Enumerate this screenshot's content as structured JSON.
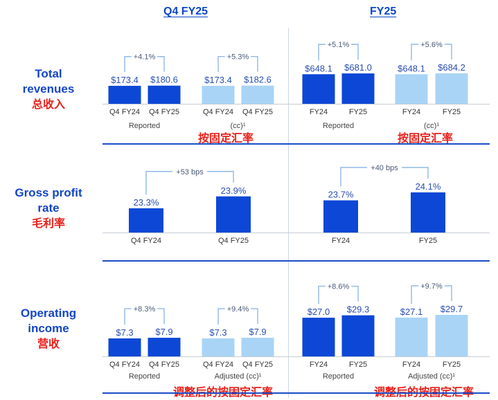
{
  "colors": {
    "dark": "#0d47d6",
    "light": "#a9d4f5",
    "text_blue": "#1346c4",
    "annot": "#8fb8e8",
    "red": "#e8201a"
  },
  "headers": {
    "q4": "Q4 FY25",
    "fy": "FY25"
  },
  "rows": [
    {
      "label_en": [
        "Total",
        "revenues"
      ],
      "label_zh": "总收入"
    },
    {
      "label_en": [
        "Gross profit",
        "rate"
      ],
      "label_zh": "毛利率"
    },
    {
      "label_en": [
        "Operating",
        "income"
      ],
      "label_zh": "营收"
    }
  ],
  "notes": {
    "rev_left": "按固定汇率",
    "rev_right": "按固定汇率",
    "op_left": "调整后的按固定汇率",
    "op_right": "调整后的按固定汇率"
  },
  "chart_data": [
    {
      "type": "bar",
      "id": "rev-q4-rep",
      "categories": [
        "Q4 FY24",
        "Q4 FY25"
      ],
      "values": [
        173.4,
        180.6
      ],
      "labels": [
        "$173.4",
        "$180.6"
      ],
      "change": "+4.1%",
      "group_label": "Reported",
      "tone": "dark"
    },
    {
      "type": "bar",
      "id": "rev-q4-cc",
      "categories": [
        "Q4 FY24",
        "Q4 FY25"
      ],
      "values": [
        173.4,
        182.6
      ],
      "labels": [
        "$173.4",
        "$182.6"
      ],
      "change": "+5.3%",
      "group_label": "(cc)¹",
      "tone": "light"
    },
    {
      "type": "bar",
      "id": "rev-fy-rep",
      "categories": [
        "FY24",
        "FY25"
      ],
      "values": [
        648.1,
        681.0
      ],
      "labels": [
        "$648.1",
        "$681.0"
      ],
      "change": "+5.1%",
      "group_label": "Reported",
      "tone": "dark"
    },
    {
      "type": "bar",
      "id": "rev-fy-cc",
      "categories": [
        "FY24",
        "FY25"
      ],
      "values": [
        648.1,
        684.2
      ],
      "labels": [
        "$648.1",
        "$684.2"
      ],
      "change": "+5.6%",
      "group_label": "(cc)¹",
      "tone": "light"
    },
    {
      "type": "bar",
      "id": "gp-q4",
      "categories": [
        "Q4 FY24",
        "Q4 FY25"
      ],
      "values": [
        23.3,
        23.9
      ],
      "labels": [
        "23.3%",
        "23.9%"
      ],
      "change": "+53 bps",
      "group_label": "",
      "tone": "dark"
    },
    {
      "type": "bar",
      "id": "gp-fy",
      "categories": [
        "FY24",
        "FY25"
      ],
      "values": [
        23.7,
        24.1
      ],
      "labels": [
        "23.7%",
        "24.1%"
      ],
      "change": "+40 bps",
      "group_label": "",
      "tone": "dark"
    },
    {
      "type": "bar",
      "id": "op-q4-rep",
      "categories": [
        "Q4 FY24",
        "Q4 FY25"
      ],
      "values": [
        7.3,
        7.9
      ],
      "labels": [
        "$7.3",
        "$7.9"
      ],
      "change": "+8.3%",
      "group_label": "Reported",
      "tone": "dark"
    },
    {
      "type": "bar",
      "id": "op-q4-adj",
      "categories": [
        "Q4 FY24",
        "Q4 FY25"
      ],
      "values": [
        7.3,
        7.9
      ],
      "labels": [
        "$7.3",
        "$7.9"
      ],
      "change": "+9.4%",
      "group_label": "Adjusted (cc)¹",
      "tone": "light"
    },
    {
      "type": "bar",
      "id": "op-fy-rep",
      "categories": [
        "FY24",
        "FY25"
      ],
      "values": [
        27.0,
        29.3
      ],
      "labels": [
        "$27.0",
        "$29.3"
      ],
      "change": "+8.6%",
      "group_label": "Reported",
      "tone": "dark"
    },
    {
      "type": "bar",
      "id": "op-fy-adj",
      "categories": [
        "FY24",
        "FY25"
      ],
      "values": [
        27.1,
        29.7
      ],
      "labels": [
        "$27.1",
        "$29.7"
      ],
      "change": "+9.7%",
      "group_label": "Adjusted (cc)¹",
      "tone": "light"
    }
  ]
}
